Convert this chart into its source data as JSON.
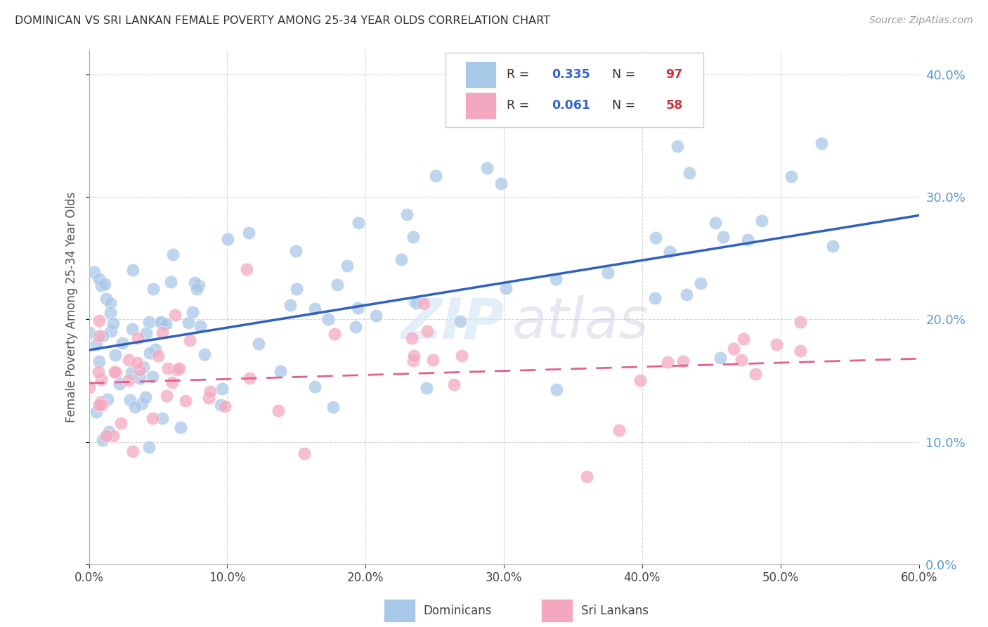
{
  "title": "DOMINICAN VS SRI LANKAN FEMALE POVERTY AMONG 25-34 YEAR OLDS CORRELATION CHART",
  "source": "Source: ZipAtlas.com",
  "ylabel": "Female Poverty Among 25-34 Year Olds",
  "xlim": [
    0.0,
    0.6
  ],
  "ylim": [
    0.0,
    0.42
  ],
  "dominican_color": "#a8c8e8",
  "srilankan_color": "#f4a8c0",
  "dominican_line_color": "#3060c0",
  "srilankan_line_color": "#e06090",
  "right_axis_color": "#5b9bd5",
  "dominican_R": 0.335,
  "dominican_N": 97,
  "srilankan_R": 0.061,
  "srilankan_N": 58,
  "background_color": "#ffffff",
  "grid_color": "#cccccc",
  "legend_R_color": "#3366cc",
  "legend_N_color": "#cc3333",
  "dom_line_start_y": 0.175,
  "dom_line_end_y": 0.285,
  "sri_line_start_y": 0.148,
  "sri_line_end_y": 0.168
}
